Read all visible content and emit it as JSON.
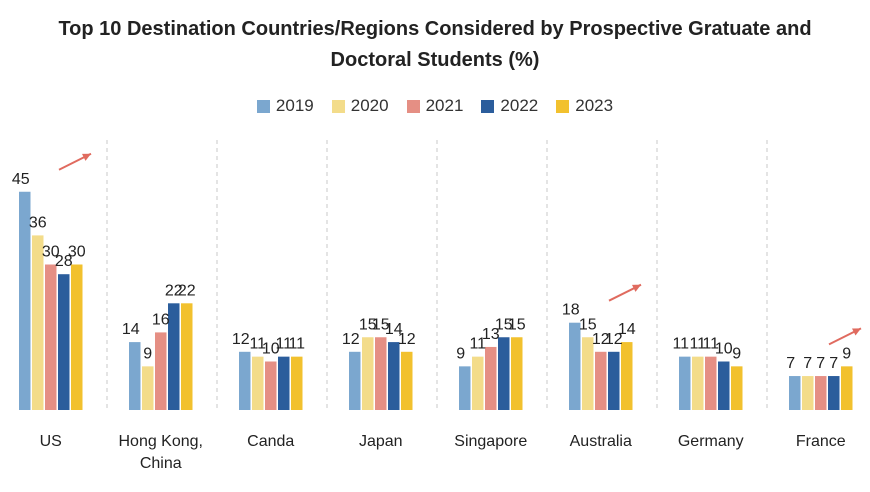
{
  "chart_data": {
    "type": "bar",
    "title": "Top 10 Destination Countries/Regions Considered by Prospective Gratuate and Doctoral Students (%)",
    "title_lines": [
      "Top 10 Destination Countries/Regions Considered by Prospective Gratuate and",
      "Doctoral Students (%)"
    ],
    "xlabel": "",
    "ylabel": "",
    "ylim": [
      0,
      48
    ],
    "grid": false,
    "legend_position": "top",
    "categories": [
      "US",
      "Hong Kong,\nChina",
      "Canda",
      "Japan",
      "Singapore",
      "Australia",
      "Germany",
      "France"
    ],
    "series": [
      {
        "name": "2019",
        "color": "#7ba7cf",
        "values": [
          45,
          14,
          12,
          12,
          9,
          18,
          11,
          7
        ]
      },
      {
        "name": "2020",
        "color": "#f3dc8a",
        "values": [
          36,
          9,
          11,
          15,
          11,
          15,
          11,
          7
        ]
      },
      {
        "name": "2021",
        "color": "#e58f84",
        "values": [
          30,
          16,
          10,
          15,
          13,
          12,
          11,
          7
        ]
      },
      {
        "name": "2022",
        "color": "#2b5d9c",
        "values": [
          28,
          22,
          11,
          14,
          15,
          12,
          10,
          7
        ]
      },
      {
        "name": "2023",
        "color": "#f2c12e",
        "values": [
          30,
          22,
          11,
          12,
          15,
          14,
          9,
          9
        ]
      }
    ],
    "trend_arrows_on": [
      "US",
      "Australia",
      "France"
    ],
    "arrow_color": "#e06b5f"
  }
}
